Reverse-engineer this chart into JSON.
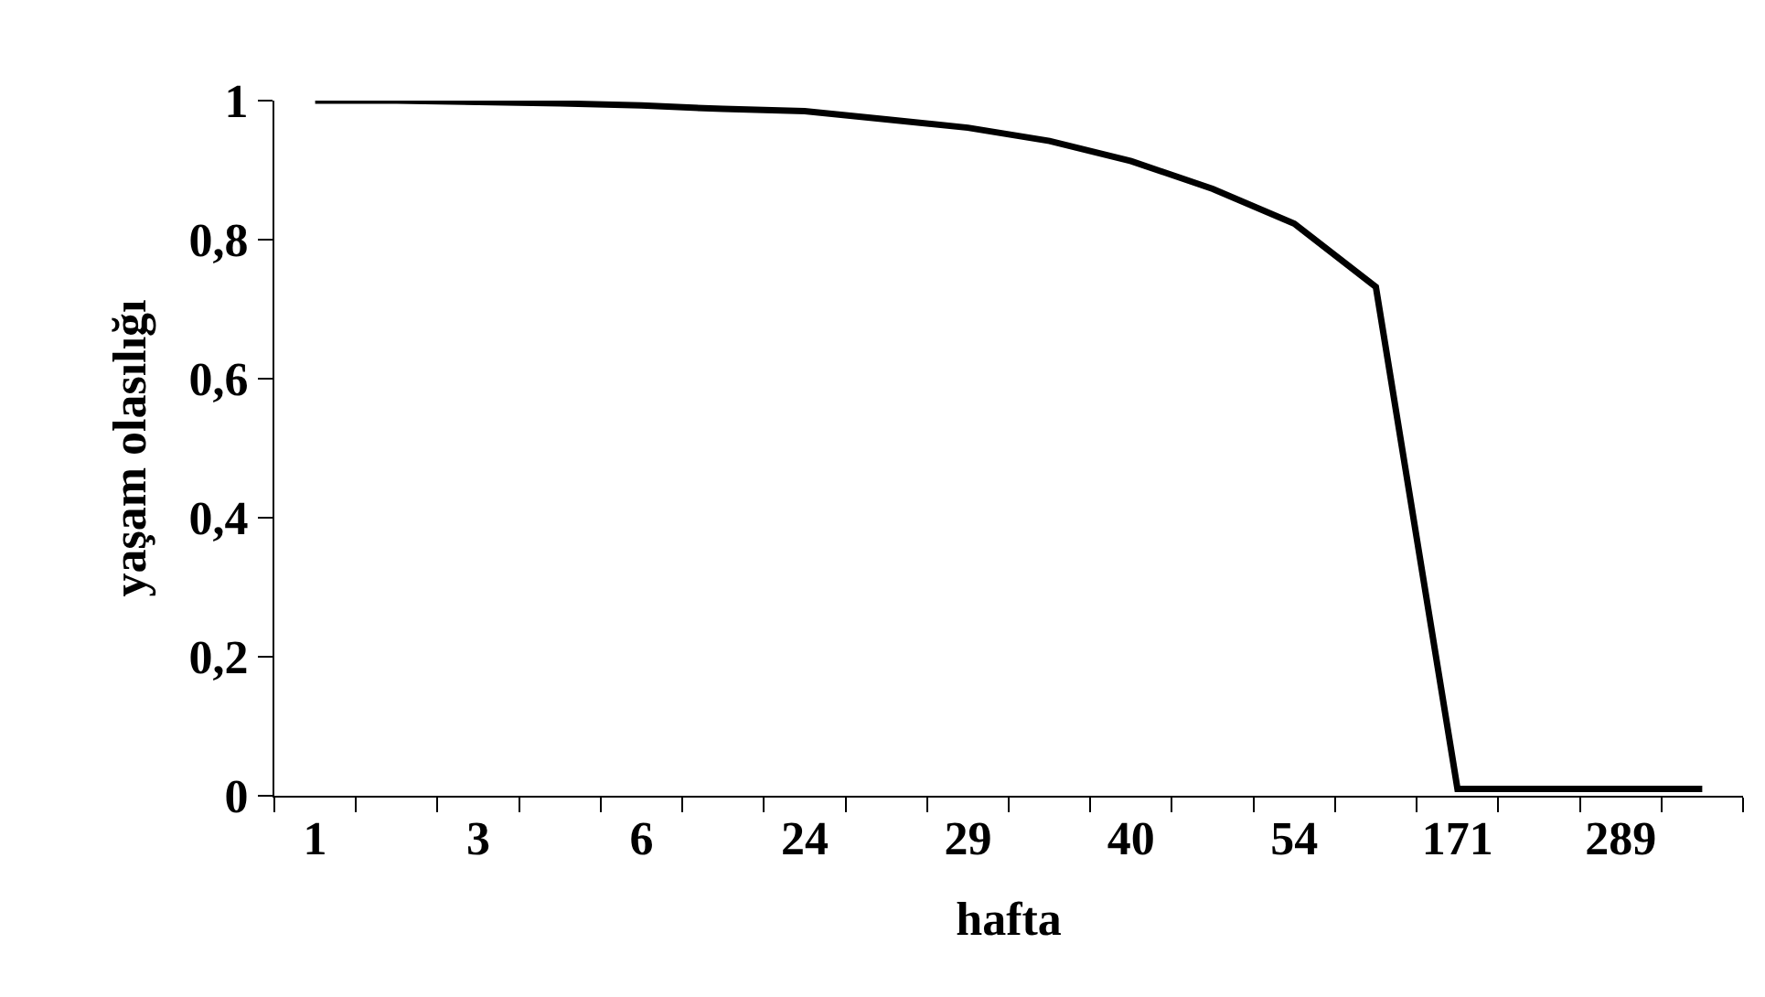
{
  "chart_data": {
    "type": "line",
    "xlabel": "hafta",
    "ylabel": "yaşam olasılığı",
    "categories": [
      "1",
      null,
      "3",
      null,
      "6",
      null,
      "24",
      null,
      "29",
      null,
      "40",
      null,
      "54",
      null,
      "171",
      null,
      "289",
      null
    ],
    "series": [
      {
        "color": "#000000",
        "values": [
          1.0,
          1.0,
          0.998,
          0.996,
          0.993,
          0.988,
          0.985,
          0.973,
          0.961,
          0.942,
          0.913,
          0.873,
          0.823,
          0.732,
          0.01,
          0.01,
          0.01,
          0.01
        ]
      }
    ],
    "ylim": [
      0,
      1
    ],
    "yticks": [
      0,
      {
        "value": 0.2,
        "label": "0,2"
      },
      {
        "value": 0.4,
        "label": "0,4"
      },
      {
        "value": 0.6,
        "label": "0,6"
      },
      {
        "value": 0.8,
        "label": "0,8"
      },
      1
    ],
    "marker": "none",
    "line_style": "solid"
  }
}
